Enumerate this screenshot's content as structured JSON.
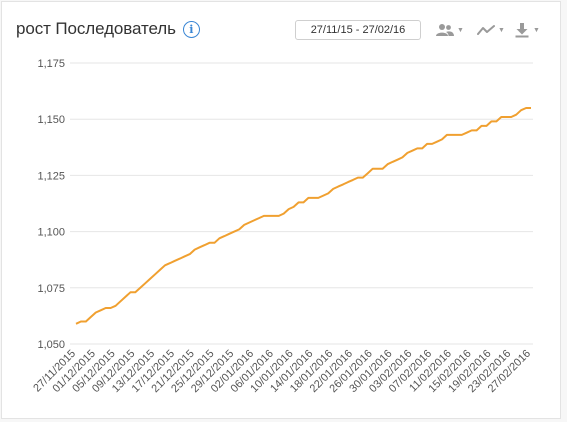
{
  "header": {
    "title": "рост Последователь",
    "info_icon": "info-icon",
    "date_range": "27/11/15 - 27/02/16"
  },
  "toolbar": {
    "audience_icon": "people-icon",
    "chart_type_icon": "line-chart-icon",
    "export_icon": "download-icon"
  },
  "colors": {
    "line": "#f0a030",
    "grid": "#e6e6e6",
    "accent": "#3a86d4"
  },
  "chart_data": {
    "type": "line",
    "title": "",
    "xlabel": "",
    "ylabel": "",
    "ylim": [
      1050,
      1175
    ],
    "yticks": [
      "1,050",
      "1,075",
      "1,100",
      "1,125",
      "1,150",
      "1,175"
    ],
    "ytick_values": [
      1050,
      1075,
      1100,
      1125,
      1150,
      1175
    ],
    "xtick_labels": [
      "27/11/2015",
      "01/12/2015",
      "05/12/2015",
      "09/12/2015",
      "13/12/2015",
      "17/12/2015",
      "21/12/2015",
      "25/12/2015",
      "29/12/2015",
      "02/01/2016",
      "06/01/2016",
      "10/01/2016",
      "14/01/2016",
      "18/01/2016",
      "22/01/2016",
      "26/01/2016",
      "30/01/2016",
      "03/02/2016",
      "07/02/2016",
      "11/02/2016",
      "15/02/2016",
      "19/02/2016",
      "23/02/2016",
      "27/02/2016"
    ],
    "grid": true,
    "series": [
      {
        "values": [
          1059,
          1060,
          1060,
          1062,
          1064,
          1065,
          1066,
          1066,
          1067,
          1069,
          1071,
          1073,
          1073,
          1075,
          1077,
          1079,
          1081,
          1083,
          1085,
          1086,
          1087,
          1088,
          1089,
          1090,
          1092,
          1093,
          1094,
          1095,
          1095,
          1097,
          1098,
          1099,
          1100,
          1101,
          1103,
          1104,
          1105,
          1106,
          1107,
          1107,
          1107,
          1107,
          1108,
          1110,
          1111,
          1113,
          1113,
          1115,
          1115,
          1115,
          1116,
          1117,
          1119,
          1120,
          1121,
          1122,
          1123,
          1124,
          1124,
          1126,
          1128,
          1128,
          1128,
          1130,
          1131,
          1132,
          1133,
          1135,
          1136,
          1137,
          1137,
          1139,
          1139,
          1140,
          1141,
          1143,
          1143,
          1143,
          1143,
          1144,
          1145,
          1145,
          1147,
          1147,
          1149,
          1149,
          1151,
          1151,
          1151,
          1152,
          1154,
          1155,
          1155
        ]
      }
    ]
  }
}
